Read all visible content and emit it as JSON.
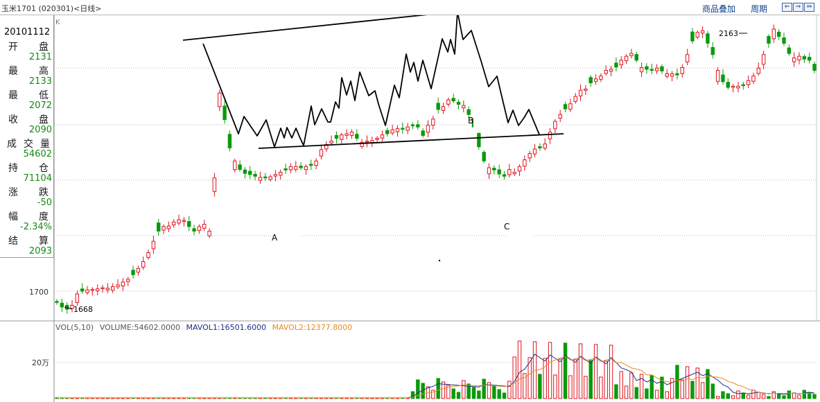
{
  "header": {
    "title": "玉米1701 (020301)<日线>",
    "overlay_label": "商品叠加",
    "period_label": "周期",
    "nav_buttons": [
      {
        "name": "scroll-left-icon",
        "glyph": "⇐"
      },
      {
        "name": "scroll-right-icon",
        "glyph": "⇒"
      },
      {
        "name": "zoom-icon",
        "glyph": "⇔"
      }
    ]
  },
  "info_panel": {
    "date": "20101112",
    "fields": [
      {
        "label": [
          "开",
          "盘"
        ],
        "value": "2131"
      },
      {
        "label": [
          "最",
          "高"
        ],
        "value": "2133"
      },
      {
        "label": [
          "最",
          "低"
        ],
        "value": "2072"
      },
      {
        "label": [
          "收",
          "盘"
        ],
        "value": "2090"
      },
      {
        "label": [
          "成",
          "交",
          "量"
        ],
        "value": "54602"
      },
      {
        "label": [
          "持",
          "仓"
        ],
        "value": "71104"
      },
      {
        "label": [
          "涨",
          "跌"
        ],
        "value": "-50"
      },
      {
        "label": [
          "幅",
          "度"
        ],
        "value": "-2.34%"
      },
      {
        "label": [
          "结",
          "算"
        ],
        "value": "2093"
      }
    ]
  },
  "colors": {
    "up": "#e0101a",
    "down": "#0a9a0a",
    "mavol1": "#1d2f8a",
    "mavol2": "#e88a1a",
    "grid": "#b9b9b9",
    "pattern": "#000000"
  },
  "chart_data": {
    "type": "candlestick",
    "price_axis": {
      "k_label": "K",
      "tick_label": "1700",
      "tick_value": 1700
    },
    "max_mark": {
      "label": "2163",
      "value": 2163
    },
    "min_mark": {
      "label": "1668",
      "value": 1668
    },
    "annotations": [
      "A",
      "B",
      "C"
    ],
    "volume_panel": {
      "indicator": "VOL(5,10)",
      "volume_text": "VOLUME:54602.0000",
      "mavol1_text": "MAVOL1:16501.6000",
      "mavol2_text": "MAVOL2:12377.8000",
      "tick_label": "20万",
      "tick_value": 200000
    },
    "close_series": [
      1680,
      1672,
      1668,
      1675,
      1695,
      1700,
      1702,
      1703,
      1704,
      1706,
      1705,
      1708,
      1711,
      1716,
      1721,
      1729,
      1740,
      1752,
      1768,
      1788,
      1806,
      1814,
      1815,
      1822,
      1826,
      1825,
      1814,
      1806,
      1814,
      1818,
      1806,
      1900,
      2050,
      2003,
      1953,
      1930,
      1915,
      1908,
      1906,
      1903,
      1901,
      1900,
      1902,
      1906,
      1910,
      1914,
      1920,
      1920,
      1918,
      1920,
      1922,
      1930,
      1950,
      1959,
      1965,
      1970,
      1976,
      1978,
      1981,
      1970,
      1963,
      1965,
      1966,
      1970,
      1976,
      1978,
      1985,
      1987,
      1986,
      1990,
      1992,
      1990,
      1975,
      1993,
      2004,
      2021,
      2026,
      2038,
      2036,
      2030,
      2028,
      2012,
      1990,
      1955,
      1930,
      1918,
      1914,
      1907,
      1903,
      1915,
      1910,
      1920,
      1932,
      1943,
      1951,
      1953,
      1960,
      1981,
      2000,
      2012,
      2022,
      2031,
      2044,
      2055,
      2057,
      2068,
      2075,
      2080,
      2090,
      2092,
      2096,
      2108,
      2115,
      2120,
      2108,
      2095,
      2092,
      2090,
      2094,
      2089,
      2084,
      2084,
      2082,
      2095,
      2118,
      2142,
      2157,
      2160,
      2138,
      2118,
      2090,
      2070,
      2060,
      2062,
      2062,
      2063,
      2072,
      2080,
      2094,
      2118,
      2138,
      2163,
      2150,
      2138,
      2120,
      2112,
      2115,
      2110,
      2108,
      2090
    ]
  }
}
